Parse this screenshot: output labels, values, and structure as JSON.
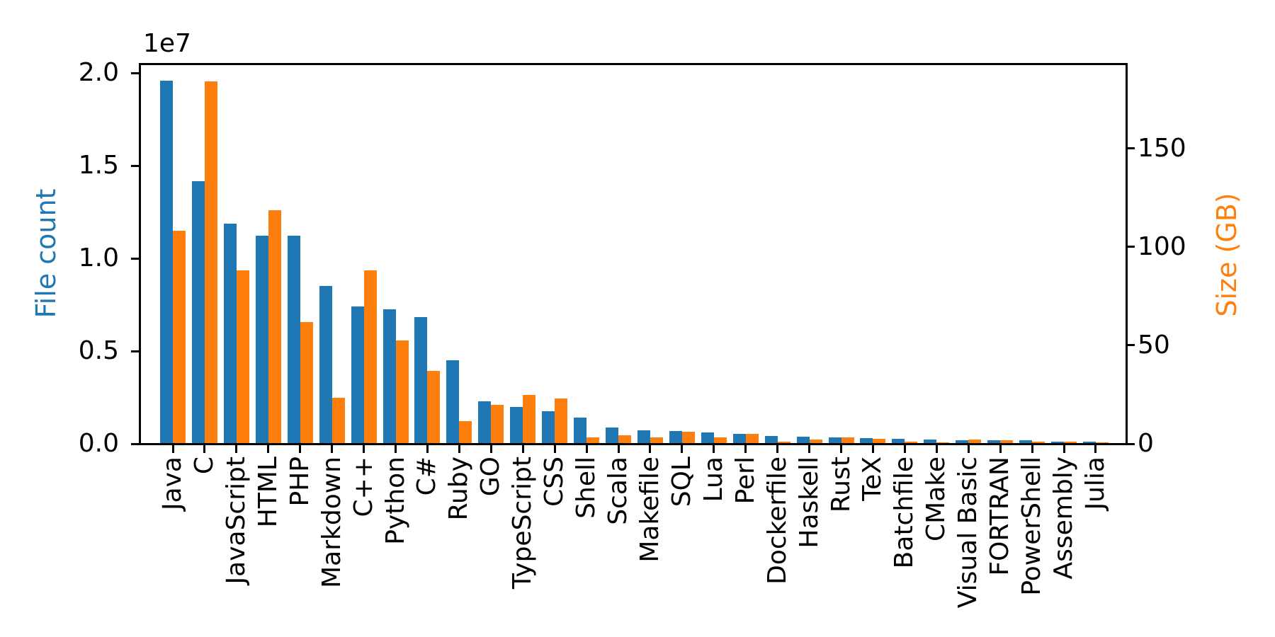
{
  "chart_data": {
    "type": "bar",
    "title": "",
    "categories": [
      "Java",
      "C",
      "JavaScript",
      "HTML",
      "PHP",
      "Markdown",
      "C++",
      "Python",
      "C#",
      "Ruby",
      "GO",
      "TypeScript",
      "CSS",
      "Shell",
      "Scala",
      "Makefile",
      "SQL",
      "Lua",
      "Perl",
      "Dockerfile",
      "Haskell",
      "Rust",
      "TeX",
      "Batchfile",
      "CMake",
      "Visual Basic",
      "FORTRAN",
      "PowerShell",
      "Assembly",
      "Julia"
    ],
    "series": [
      {
        "name": "File count",
        "axis": "left",
        "color": "#1f77b4",
        "values": [
          19550000,
          14140000,
          11840000,
          11180000,
          11180000,
          8460000,
          7380000,
          7230000,
          6810000,
          4470000,
          2270000,
          1940000,
          1730000,
          1390000,
          836000,
          679000,
          657000,
          579000,
          498000,
          367000,
          341000,
          322000,
          251000,
          237000,
          175000,
          156000,
          142000,
          137000,
          83000,
          58000
        ]
      },
      {
        "name": "Size (GB)",
        "axis": "right",
        "color": "#ff7f0e",
        "values": [
          107.7,
          183.8,
          87.8,
          118.1,
          61.4,
          23.1,
          87.7,
          52.0,
          36.8,
          11.0,
          19.3,
          24.6,
          22.7,
          3.0,
          3.9,
          2.9,
          5.7,
          2.8,
          4.7,
          0.7,
          1.9,
          2.7,
          2.2,
          0.7,
          0.5,
          1.9,
          1.6,
          0.7,
          0.8,
          0.3
        ]
      }
    ],
    "left_axis": {
      "label": "File count",
      "label_color": "#1f77b4",
      "offset_text": "1e7",
      "tick_labels": [
        "0.0",
        "0.5",
        "1.0",
        "1.5",
        "2.0"
      ],
      "tick_values": [
        0,
        5000000,
        10000000,
        15000000,
        20000000
      ],
      "ylim": [
        0,
        20500000
      ]
    },
    "right_axis": {
      "label": "Size (GB)",
      "label_color": "#ff7f0e",
      "tick_labels": [
        "0",
        "50",
        "100",
        "150"
      ],
      "tick_values": [
        0,
        50,
        100,
        150
      ],
      "ylim": [
        0,
        193
      ]
    },
    "legend": "none",
    "grid": false,
    "background": "#ffffff",
    "spine_color": "#000000"
  }
}
